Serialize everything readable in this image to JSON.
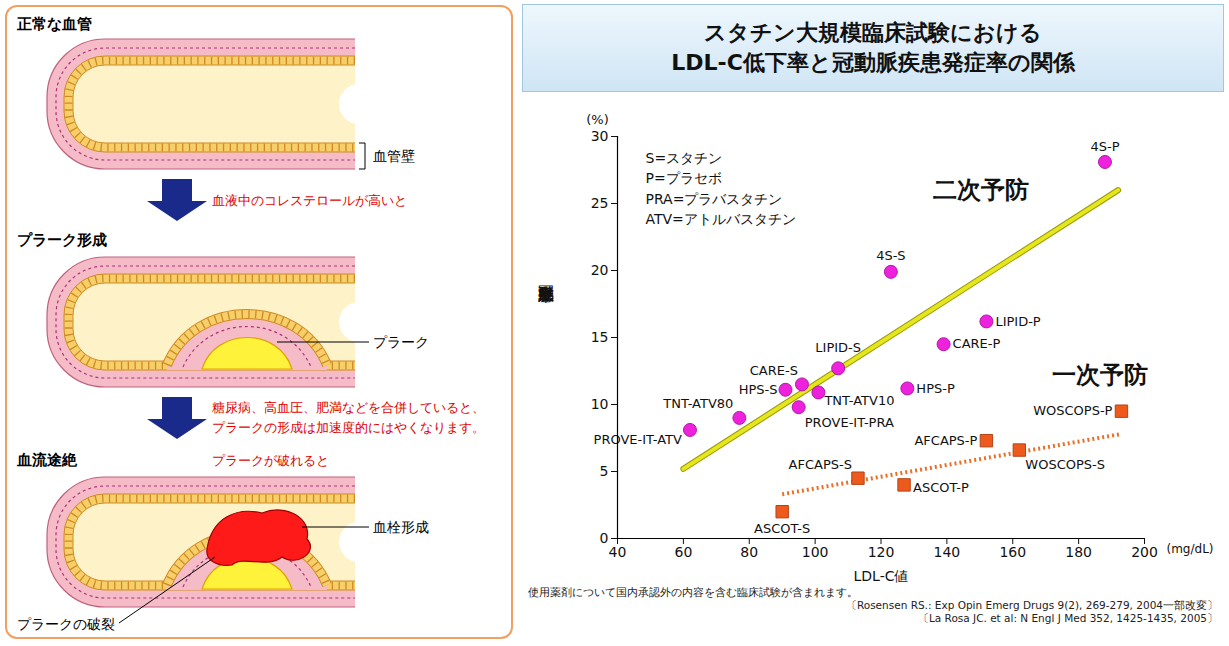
{
  "diagram": {
    "stages": [
      {
        "title": "正常な血管",
        "labels": [
          "血管壁"
        ]
      },
      {
        "arrow_text": [
          "血液中のコレステロールが高いと"
        ],
        "title": "プラーク形成",
        "labels": [
          "プラーク"
        ]
      },
      {
        "arrow_text": [
          "糖尿病、高血圧、肥満などを合併していると、",
          "プラークの形成は加速度的にはやくなります。"
        ],
        "condition": "プラークが破れると",
        "title": "血流途絶",
        "labels": [
          "血栓形成",
          "プラークの破裂"
        ]
      }
    ]
  },
  "chart_data": {
    "type": "scatter",
    "title": [
      "スタチン大規模臨床試験における",
      "LDL-C低下率と冠動脈疾患発症率の関係"
    ],
    "abbreviations": [
      "S=スタチン",
      "P=プラセボ",
      "PRA=プラバスタチン",
      "ATV=アトルバスタチン"
    ],
    "x_label": "LDL-C値",
    "x_unit": "(mg/dL)",
    "y_label": "冠動脈疾患発症率",
    "y_unit": "(%)",
    "xlim": [
      40,
      200
    ],
    "xticks": [
      40,
      60,
      80,
      100,
      120,
      140,
      160,
      180,
      200
    ],
    "ylim": [
      0,
      30
    ],
    "yticks": [
      0,
      5,
      10,
      15,
      20,
      25,
      30
    ],
    "grid": false,
    "series": [
      {
        "name": "二次予防",
        "color": "#ee22dd",
        "marker": "circle",
        "labels": [
          "PROVE-IT-ATV",
          "TNT-ATV80",
          "HPS-S",
          "CARE-S",
          "PROVE-IT-PRA",
          "TNT-ATV10",
          "LIPID-S",
          "4S-S",
          "HPS-P",
          "CARE-P",
          "LIPID-P",
          "4S-P"
        ],
        "x": [
          62,
          77,
          91,
          96,
          95,
          101,
          107,
          123,
          128,
          139,
          152,
          188
        ],
        "values": [
          8.1,
          9.0,
          11.1,
          11.5,
          9.8,
          10.9,
          12.7,
          19.9,
          11.2,
          14.5,
          16.2,
          28.1
        ],
        "trend": {
          "x": [
            60,
            192
          ],
          "values": [
            5.2,
            26.0
          ],
          "color": "#e6e61e",
          "line_style": "solid"
        }
      },
      {
        "name": "一次予防",
        "color": "#ee5a1e",
        "marker": "square",
        "labels": [
          "ASCOT-S",
          "AFCAPS-S",
          "ASCOT-P",
          "AFCAPS-P",
          "WOSCOPS-S",
          "WOSCOPS-P"
        ],
        "x": [
          90,
          113,
          127,
          152,
          162,
          193
        ],
        "values": [
          2.0,
          4.5,
          4.0,
          7.3,
          6.6,
          9.5
        ],
        "trend": {
          "x": [
            90,
            193
          ],
          "values": [
            3.3,
            7.8
          ],
          "color": "#e8702a",
          "line_style": "dotted"
        }
      }
    ],
    "footnotes": [
      "使用薬剤について国内承認外の内容を含む臨床試験が含まれます。",
      "〔Rosensen RS.: Exp Opin Emerg Drugs 9(2), 269-279, 2004一部改変〕",
      "〔La Rosa JC. et al: N Engl J Med 352, 1425-1435, 2005〕"
    ]
  }
}
